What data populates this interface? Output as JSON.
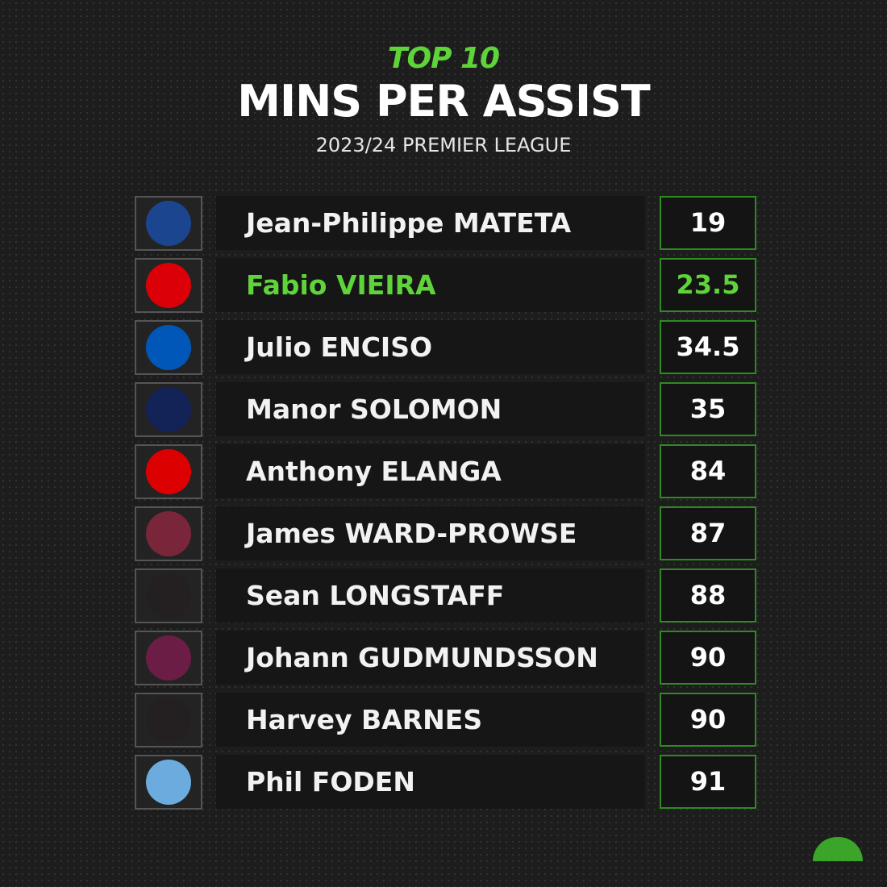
{
  "header": {
    "kicker": "TOP 10",
    "title": "MINS PER ASSIST",
    "subtitle": "2023/24 PREMIER LEAGUE"
  },
  "table": {
    "rows": [
      [
        "Jean-Philippe MATETA",
        19
      ],
      [
        "Fabio VIEIRA",
        23.5
      ],
      [
        "Julio ENCISO",
        34.5
      ],
      [
        "Manor SOLOMON",
        35
      ],
      [
        "Anthony ELANGA",
        84
      ],
      [
        "James WARD-PROWSE",
        87
      ],
      [
        "Sean LONGSTAFF",
        88
      ],
      [
        "Johann GUDMUNDSSON",
        90
      ],
      [
        "Harvey BARNES",
        90
      ],
      [
        "Phil FODEN",
        91
      ]
    ]
  }
}
